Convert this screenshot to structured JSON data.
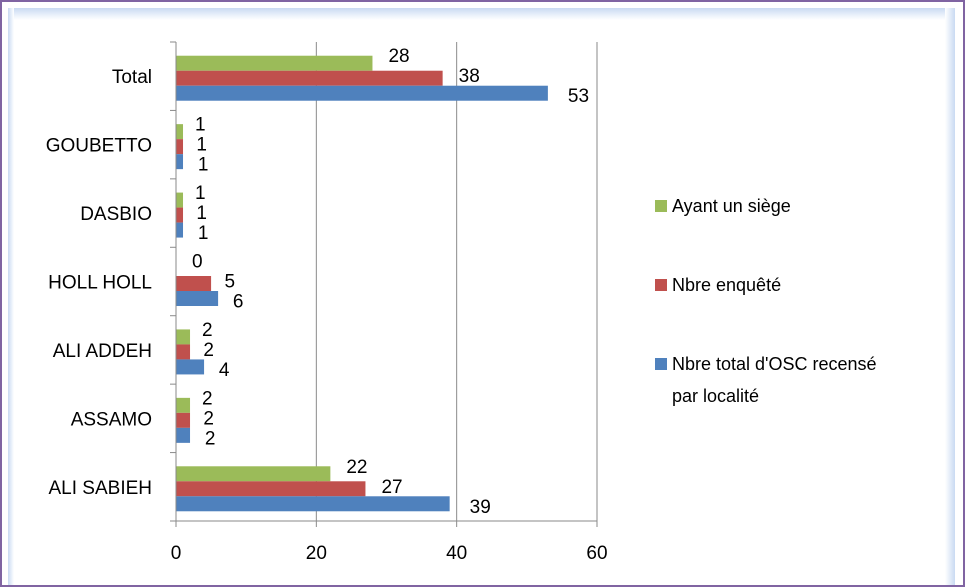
{
  "chart_data": {
    "type": "bar",
    "orientation": "horizontal",
    "categories": [
      "ALI SABIEH",
      "ASSAMO",
      "ALI ADDEH",
      "HOLL HOLL",
      "DASBIO",
      "GOUBETTO",
      "Total"
    ],
    "series": [
      {
        "name": "Nbre total d'OSC recensé par localité",
        "color": "#4f81bd",
        "values": [
          39,
          2,
          4,
          6,
          1,
          1,
          53
        ]
      },
      {
        "name": "Nbre enquêté",
        "color": "#c0504d",
        "values": [
          27,
          2,
          2,
          5,
          1,
          1,
          38
        ]
      },
      {
        "name": "Ayant un siège",
        "color": "#9bbb59",
        "values": [
          22,
          2,
          2,
          0,
          1,
          1,
          28
        ]
      }
    ],
    "xlim": [
      0,
      60
    ],
    "xticks": [
      "0",
      "20",
      "40",
      "60"
    ],
    "grid": true,
    "legend_position": "right",
    "legend": [
      {
        "lines": [
          "Ayant un siège"
        ],
        "color": "#9bbb59"
      },
      {
        "lines": [
          "Nbre enquêté"
        ],
        "color": "#c0504d"
      },
      {
        "lines": [
          "Nbre total d'OSC recensé",
          "par localité"
        ],
        "color": "#4f81bd"
      }
    ],
    "title": "",
    "xlabel": "",
    "ylabel": ""
  }
}
